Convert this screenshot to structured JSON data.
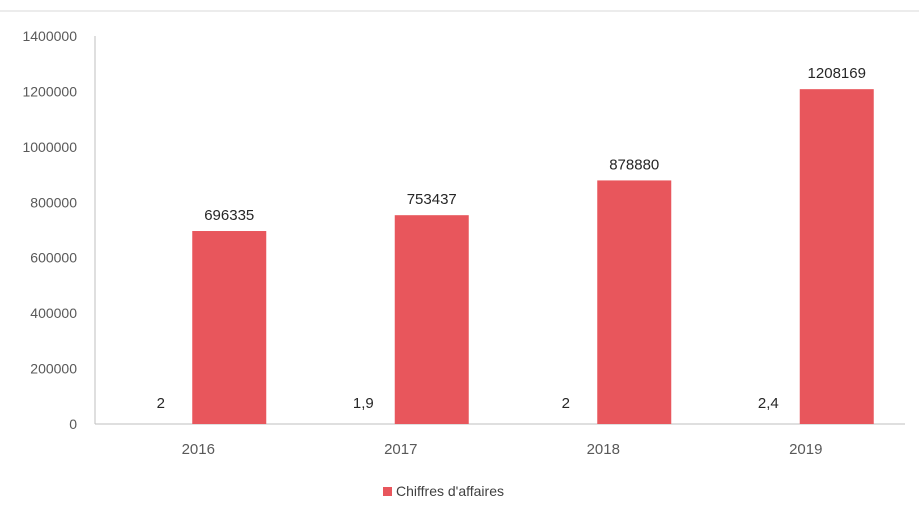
{
  "chart_data": {
    "type": "bar",
    "categories": [
      "2016",
      "2017",
      "2018",
      "2019"
    ],
    "series": [
      {
        "name": "",
        "values": [
          2,
          1.9,
          2,
          2.4
        ],
        "labels": [
          "2",
          "1,9",
          "2",
          "2,4"
        ]
      },
      {
        "name": "Chiffres d'affaires",
        "values": [
          696335,
          753437,
          878880,
          1208169
        ],
        "labels": [
          "696335",
          "753437",
          "878880",
          "1208169"
        ],
        "color": "#e8565c"
      }
    ],
    "ylim": [
      0,
      1400000
    ],
    "yticks": [
      0,
      200000,
      400000,
      600000,
      800000,
      1000000,
      1200000,
      1400000
    ],
    "ytick_labels": [
      "0",
      "200000",
      "400000",
      "600000",
      "800000",
      "1000000",
      "1200000",
      "1400000"
    ],
    "title": "",
    "xlabel": "",
    "ylabel": "",
    "legend_position": "bottom",
    "grid": false
  },
  "legend": {
    "label": "Chiffres d'affaires"
  }
}
